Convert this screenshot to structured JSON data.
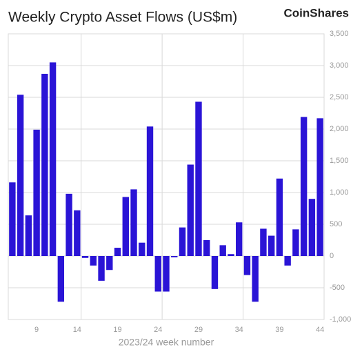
{
  "chart_data": {
    "type": "bar",
    "title": "Weekly Crypto Asset Flows (US$m)",
    "brand": "CoinShares",
    "x_label": "2023/24 week number",
    "categories": [
      null,
      null,
      null,
      "9",
      null,
      null,
      null,
      null,
      "14",
      null,
      null,
      null,
      null,
      "19",
      null,
      null,
      null,
      null,
      "24",
      null,
      null,
      null,
      null,
      "29",
      null,
      null,
      null,
      null,
      "34",
      null,
      null,
      null,
      null,
      "39",
      null,
      null,
      null,
      null,
      "44"
    ],
    "values": [
      1160,
      2540,
      640,
      1990,
      2870,
      3050,
      -720,
      980,
      720,
      -30,
      -150,
      -390,
      -220,
      130,
      930,
      1050,
      210,
      2040,
      -560,
      -560,
      -20,
      450,
      1440,
      2430,
      250,
      -520,
      170,
      30,
      530,
      -300,
      -720,
      430,
      320,
      1220,
      -150,
      420,
      2190,
      900,
      2170
    ],
    "color": "#2a14d6",
    "ylim": [
      -1000,
      3500
    ],
    "yticks": [
      {
        "value": -1000,
        "label": "-1,000"
      },
      -500,
      0,
      500,
      {
        "value": 1000,
        "label": "1,000"
      },
      {
        "value": 1500,
        "label": "1,500"
      },
      {
        "value": 2000,
        "label": "2,000"
      },
      {
        "value": 2500,
        "label": "2,500"
      },
      {
        "value": 3000,
        "label": "3,000"
      },
      {
        "value": 3500,
        "label": "3,500"
      }
    ],
    "grid": true
  }
}
